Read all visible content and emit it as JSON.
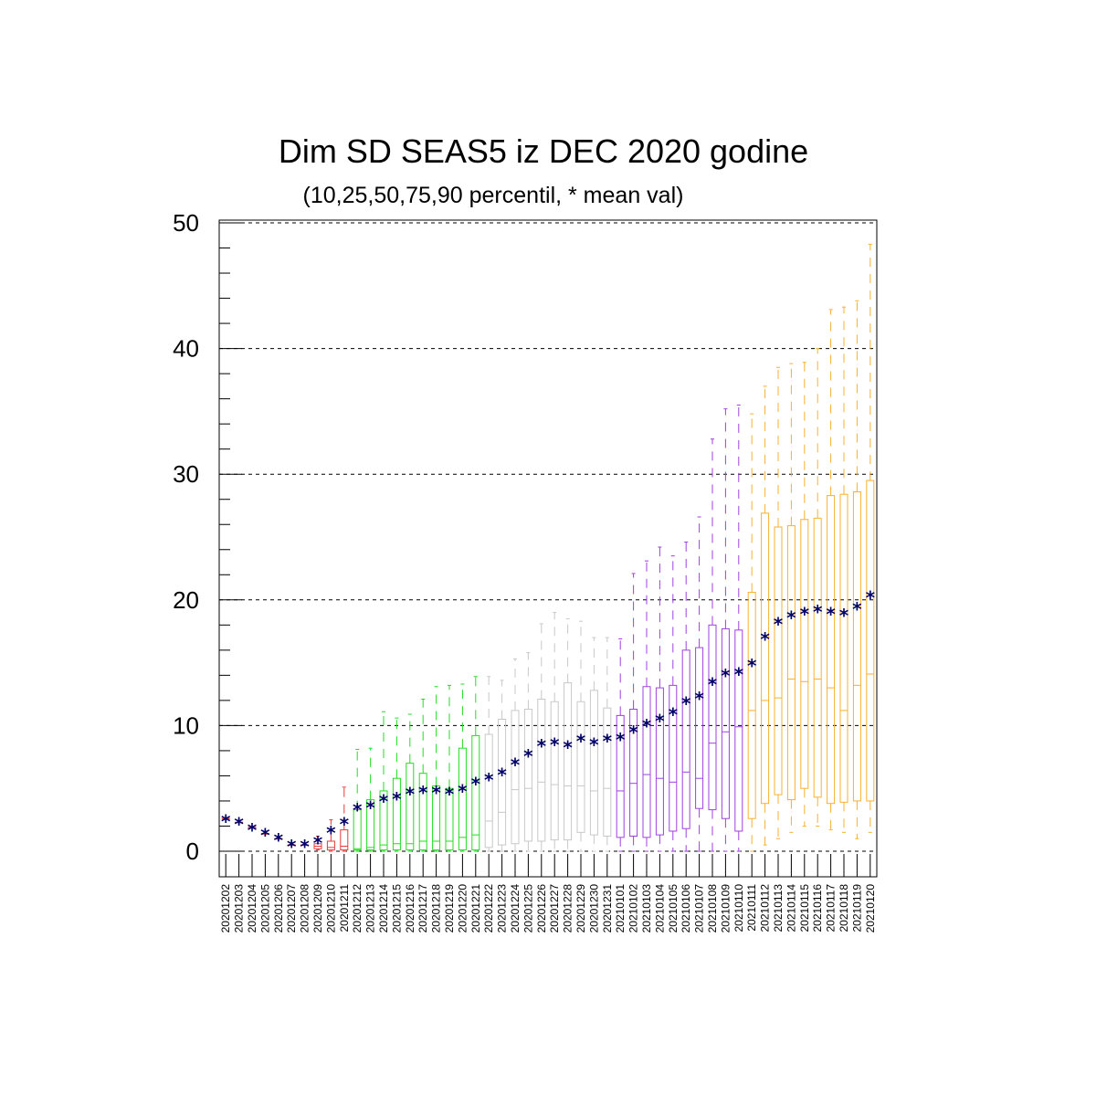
{
  "chart_data": {
    "type": "box",
    "title": "Dim SD SEAS5 iz DEC 2020 godine",
    "subtitle": "(10,25,50,75,90 percentil, * mean val)",
    "xlabel": "",
    "ylabel": "",
    "ylim": [
      -2,
      50
    ],
    "yticks": [
      0,
      10,
      20,
      30,
      40,
      50
    ],
    "grid": true,
    "mean_marker": "*",
    "colors": {
      "mean": "#000066",
      "grid": "#000000",
      "groups": [
        "#e83a3a",
        "#22dd22",
        "#c8c8c8",
        "#a040e0",
        "#f8b030"
      ]
    },
    "categories": [
      "20201202",
      "20201203",
      "20201204",
      "20201205",
      "20201206",
      "20201207",
      "20201208",
      "20201209",
      "20201210",
      "20201211",
      "20201212",
      "20201213",
      "20201214",
      "20201215",
      "20201216",
      "20201217",
      "20201218",
      "20201219",
      "20201220",
      "20201221",
      "20201222",
      "20201223",
      "20201224",
      "20201225",
      "20201226",
      "20201227",
      "20201228",
      "20201229",
      "20201230",
      "20201231",
      "20210101",
      "20210102",
      "20210103",
      "20210104",
      "20210105",
      "20210106",
      "20210107",
      "20210108",
      "20210109",
      "20210110",
      "20210111",
      "20210112",
      "20210113",
      "20210114",
      "20210115",
      "20210116",
      "20210117",
      "20210118",
      "20210119",
      "20210120"
    ],
    "group": [
      0,
      0,
      0,
      0,
      0,
      0,
      0,
      0,
      0,
      0,
      1,
      1,
      1,
      1,
      1,
      1,
      1,
      1,
      1,
      1,
      2,
      2,
      2,
      2,
      2,
      2,
      2,
      2,
      2,
      2,
      3,
      3,
      3,
      3,
      3,
      3,
      3,
      3,
      3,
      3,
      4,
      4,
      4,
      4,
      4,
      4,
      4,
      4,
      4,
      4
    ],
    "p10": [
      2.6,
      2.3,
      1.9,
      1.4,
      1.0,
      0.5,
      0.5,
      0.1,
      0.0,
      0.0,
      0.0,
      0.0,
      0.0,
      0.0,
      0.0,
      0.0,
      0.0,
      0.0,
      0.0,
      0.0,
      0.0,
      0.0,
      0.0,
      0.0,
      0.0,
      0.0,
      0.0,
      0.0,
      0.0,
      0.0,
      0.0,
      0.0,
      0.0,
      0.0,
      0.0,
      0.0,
      0.0,
      0.0,
      0.0,
      0.0,
      0.0,
      0.5,
      1.0,
      1.5,
      2.0,
      2.0,
      1.7,
      1.5,
      1.0,
      1.5
    ],
    "p25": [
      2.6,
      2.3,
      1.9,
      1.4,
      1.0,
      0.5,
      0.5,
      0.2,
      0.1,
      0.1,
      0.1,
      0.1,
      0.1,
      0.1,
      0.1,
      0.1,
      0.1,
      0.1,
      0.1,
      0.1,
      0.3,
      0.5,
      0.6,
      0.8,
      0.8,
      0.9,
      0.9,
      1.5,
      1.3,
      1.2,
      1.1,
      1.2,
      1.1,
      1.3,
      1.6,
      1.8,
      3.4,
      3.3,
      2.6,
      1.6,
      2.6,
      3.8,
      4.5,
      4.1,
      5.0,
      4.3,
      3.8,
      3.9,
      4.0,
      4.0
    ],
    "p50": [
      2.6,
      2.3,
      1.9,
      1.4,
      1.0,
      0.5,
      0.5,
      0.4,
      0.3,
      0.4,
      0.2,
      0.3,
      0.5,
      0.6,
      0.6,
      0.8,
      0.8,
      0.8,
      1.1,
      1.3,
      2.4,
      3.1,
      4.9,
      5.0,
      5.5,
      5.3,
      5.2,
      5.2,
      4.8,
      5.0,
      4.8,
      5.4,
      6.1,
      5.8,
      5.5,
      6.3,
      5.8,
      8.6,
      9.5,
      9.9,
      11.2,
      12.0,
      12.2,
      13.7,
      13.5,
      13.7,
      13.0,
      11.2,
      13.2,
      14.1
    ],
    "p75": [
      2.6,
      2.3,
      1.9,
      1.4,
      1.0,
      0.5,
      0.5,
      0.6,
      0.8,
      1.7,
      3.3,
      4.1,
      4.8,
      5.8,
      7.0,
      6.2,
      5.2,
      5.0,
      8.2,
      9.2,
      9.3,
      10.5,
      11.2,
      11.3,
      12.1,
      11.9,
      13.4,
      11.9,
      12.8,
      11.4,
      10.8,
      11.3,
      13.1,
      13.0,
      13.2,
      16.0,
      16.2,
      18.0,
      17.7,
      17.6,
      20.6,
      26.9,
      25.8,
      25.9,
      26.4,
      26.5,
      28.3,
      28.4,
      28.6,
      29.5
    ],
    "p90": [
      2.6,
      2.3,
      1.9,
      1.4,
      1.0,
      0.5,
      0.5,
      1.2,
      2.5,
      5.1,
      8.1,
      8.2,
      11.1,
      10.6,
      10.9,
      12.1,
      13.1,
      13.2,
      13.3,
      13.9,
      13.9,
      13.6,
      15.3,
      15.8,
      18.1,
      19.0,
      18.5,
      18.3,
      17.0,
      17.0,
      16.9,
      22.1,
      23.1,
      24.2,
      23.5,
      24.6,
      26.6,
      32.8,
      35.2,
      35.5,
      34.8,
      37.0,
      38.5,
      38.8,
      38.9,
      40.0,
      43.1,
      43.3,
      43.8,
      48.3
    ],
    "mean": [
      2.5,
      2.3,
      1.8,
      1.4,
      1.0,
      0.5,
      0.5,
      0.8,
      1.6,
      2.3,
      3.4,
      3.6,
      4.1,
      4.3,
      4.7,
      4.8,
      4.8,
      4.7,
      4.9,
      5.5,
      5.8,
      6.2,
      7.0,
      7.7,
      8.5,
      8.6,
      8.4,
      8.9,
      8.6,
      8.9,
      9.0,
      9.6,
      10.1,
      10.5,
      11.0,
      11.9,
      12.3,
      13.4,
      14.1,
      14.2,
      14.9,
      17.0,
      18.2,
      18.7,
      19.0,
      19.2,
      19.0,
      18.9,
      19.4,
      20.3
    ]
  }
}
